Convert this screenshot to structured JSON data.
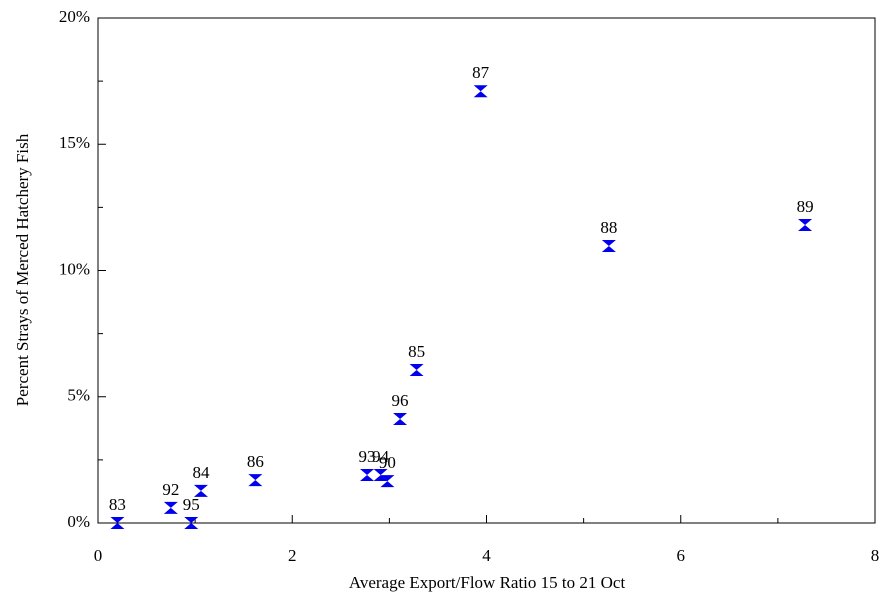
{
  "chart_data": {
    "type": "scatter",
    "xlabel": "Average Export/Flow Ratio 15 to 21 Oct",
    "ylabel": "Percent Strays of Merced Hatchery Fish",
    "series": [
      {
        "color": "#0000ee",
        "x": [
          0.2,
          0.75,
          0.96,
          1.06,
          1.62,
          2.77,
          2.91,
          2.98,
          3.11,
          3.28,
          3.94,
          5.26,
          7.28
        ],
        "values": [
          0,
          0.6,
          0,
          1.27,
          1.7,
          1.9,
          1.9,
          1.66,
          4.12,
          6.06,
          17.1,
          10.97,
          11.8
        ],
        "labels": [
          "83",
          "92",
          "95",
          "84",
          "86",
          "93",
          "94",
          "90",
          "96",
          "85",
          "87",
          "88",
          "89"
        ]
      }
    ],
    "xlim": [
      0,
      8
    ],
    "xticks": [
      0,
      2,
      4,
      6,
      8
    ],
    "xminorticks": [
      1,
      3,
      5,
      7
    ],
    "ylim": [
      0,
      20
    ],
    "yticks": [
      {
        "value": 0,
        "label": "0%"
      },
      {
        "value": 5,
        "label": "5%"
      },
      {
        "value": 10,
        "label": "10%"
      },
      {
        "value": 15,
        "label": "15%"
      },
      {
        "value": 20,
        "label": "20%"
      }
    ],
    "yminorticks": [
      2.5,
      7.5,
      12.5,
      17.5
    ]
  }
}
